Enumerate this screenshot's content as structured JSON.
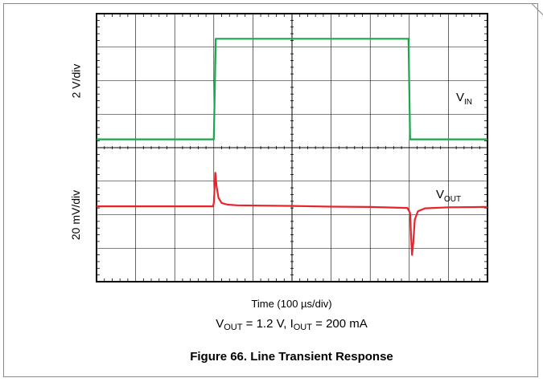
{
  "figure_caption": "Figure 66. Line Transient Response",
  "conditions": {
    "vout_main": "V",
    "vout_sub": "OUT",
    "vout_value": " = 1.2 V, ",
    "iout_main": "I",
    "iout_sub": "OUT",
    "iout_value": " = 200 mA"
  },
  "chart_data": {
    "type": "line",
    "xlabel": "Time (100 µs/div)",
    "x_divisions": 10,
    "y_divisions": 8,
    "channels": [
      {
        "ylabel": "2 V/div",
        "trace_label_main": "V",
        "trace_label_sub": "IN",
        "color": "#1aa64a",
        "grid_rows": [
          0,
          4
        ],
        "baseline_div": 3.75,
        "step_div": 3.0,
        "step_up_x_div": 3.0,
        "step_down_x_div": 8.0,
        "points": [
          [
            0,
            0
          ],
          [
            3.0,
            0
          ],
          [
            3.05,
            3.0
          ],
          [
            7.98,
            3.0
          ],
          [
            8.02,
            0
          ],
          [
            10,
            0
          ]
        ]
      },
      {
        "ylabel": "20 mV/div",
        "trace_label_main": "V",
        "trace_label_sub": "OUT",
        "color": "#e8242b",
        "grid_rows": [
          4,
          8
        ],
        "baseline_div": 5.75,
        "points": [
          [
            0,
            0
          ],
          [
            2.98,
            0
          ],
          [
            3.0,
            0.1
          ],
          [
            3.04,
            1.0
          ],
          [
            3.07,
            0.6
          ],
          [
            3.12,
            0.25
          ],
          [
            3.2,
            0.1
          ],
          [
            3.35,
            0.05
          ],
          [
            3.6,
            0.03
          ],
          [
            4.2,
            0.02
          ],
          [
            5.0,
            0.01
          ],
          [
            6.0,
            -0.01
          ],
          [
            7.0,
            -0.02
          ],
          [
            7.95,
            -0.05
          ],
          [
            8.02,
            -0.2
          ],
          [
            8.05,
            -1.0
          ],
          [
            8.07,
            -1.45
          ],
          [
            8.1,
            -1.1
          ],
          [
            8.14,
            -0.4
          ],
          [
            8.22,
            -0.15
          ],
          [
            8.4,
            -0.06
          ],
          [
            9.0,
            -0.03
          ],
          [
            10,
            -0.02
          ]
        ]
      }
    ]
  }
}
